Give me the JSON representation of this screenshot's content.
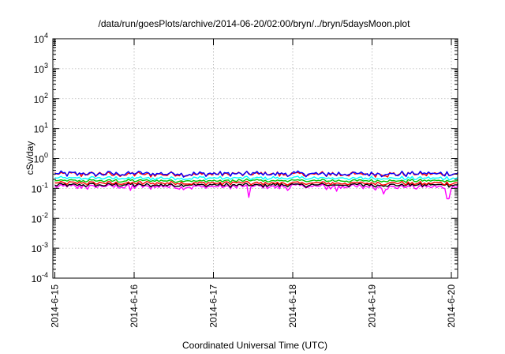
{
  "chart_data": {
    "type": "line",
    "title": "/data/run/goesPlots/archive/2014-06-20/02:00/bryn/../bryn/5daysMoon.plot",
    "xlabel": "Coordinated Universal Time (UTC)",
    "ylabel": "cSv/day",
    "yscale": "log",
    "ylim": [
      0.0001,
      10000
    ],
    "xlim_days": [
      0,
      5.15
    ],
    "grid": true,
    "legend": "none",
    "y_ticks": [
      {
        "base": "10",
        "exp": "4",
        "value": 10000
      },
      {
        "base": "10",
        "exp": "3",
        "value": 1000
      },
      {
        "base": "10",
        "exp": "2",
        "value": 100
      },
      {
        "base": "10",
        "exp": "1",
        "value": 10
      },
      {
        "base": "10",
        "exp": "0",
        "value": 1
      },
      {
        "base": "10",
        "exp": "-1",
        "value": 0.1
      },
      {
        "base": "10",
        "exp": "-2",
        "value": 0.01
      },
      {
        "base": "10",
        "exp": "-3",
        "value": 0.001
      },
      {
        "base": "10",
        "exp": "-4",
        "value": 0.0001
      }
    ],
    "x_ticks": [
      {
        "label": "2014-6-15",
        "day": 0
      },
      {
        "label": "2014-6-16",
        "day": 1
      },
      {
        "label": "2014-6-17",
        "day": 2
      },
      {
        "label": "2014-6-18",
        "day": 3
      },
      {
        "label": "2014-6-19",
        "day": 4
      },
      {
        "label": "2014-6-20",
        "day": 5
      }
    ],
    "series": [
      {
        "color": "#ff00ff",
        "base": 0.115,
        "spread": 0.22,
        "dips": [
          [
            2.45,
            0.05
          ],
          [
            4.15,
            0.065
          ],
          [
            4.95,
            0.045
          ],
          [
            0.95,
            0.085
          ],
          [
            3.55,
            0.08
          ]
        ]
      },
      {
        "color": "#000000",
        "base": 0.13,
        "spread": 0.14,
        "dips": []
      },
      {
        "color": "#ff0000",
        "base": 0.15,
        "spread": 0.14,
        "dips": []
      },
      {
        "color": "#00c000",
        "base": 0.18,
        "spread": 0.12,
        "dips": []
      },
      {
        "color": "#00ffff",
        "base": 0.22,
        "spread": 0.14,
        "dips": []
      },
      {
        "color": "#ff0000",
        "base": 0.3,
        "spread": 0.2,
        "dips": []
      },
      {
        "color": "#0000ff",
        "base": 0.31,
        "spread": 0.2,
        "dips": []
      }
    ]
  }
}
